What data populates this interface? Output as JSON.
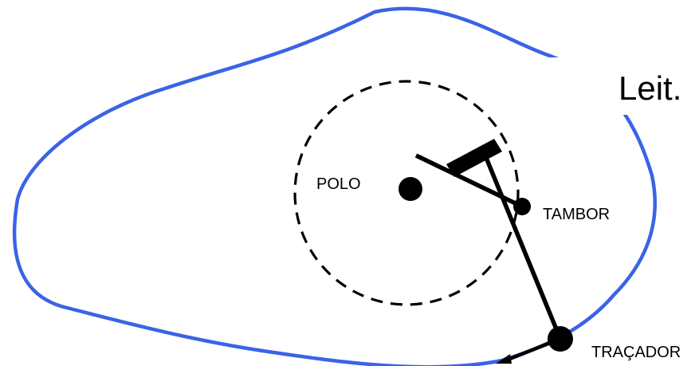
{
  "colors": {
    "boundary": "#3a63e6",
    "ink": "#000000",
    "background": "#ffffff"
  },
  "labels": {
    "reading": "Leit.",
    "pole": "POLO",
    "drum": "TAMBOR",
    "tracer": "TRAÇADOR"
  }
}
